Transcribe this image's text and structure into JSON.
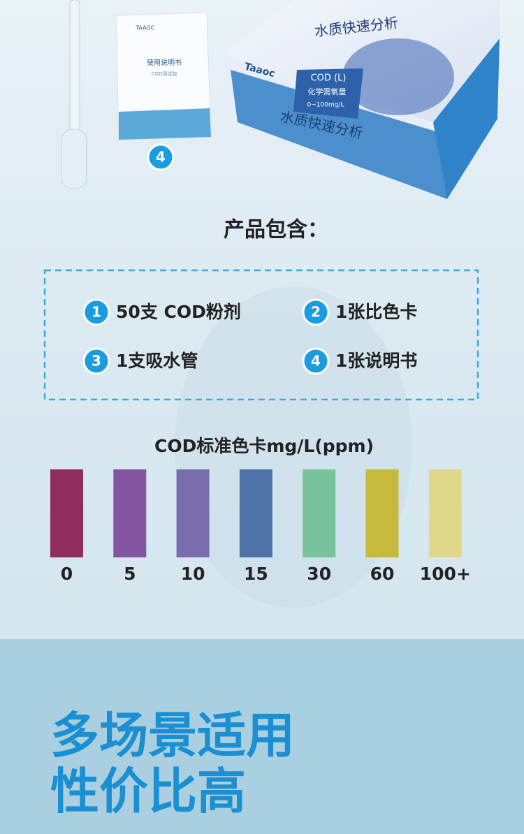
{
  "product_images": {
    "manual": {
      "brand": "TAAOC",
      "title": "使用说明书",
      "subtitle": "COD测试包",
      "badge": "4"
    },
    "box": {
      "brand": "Taaoc",
      "top_title": "水质快速分析",
      "label_title": "COD (L)",
      "label_sub": "化学需氧量",
      "label_range": "0~100mg/L",
      "front_title": "水质快速分析"
    }
  },
  "contents": {
    "title": "产品包含：",
    "items": [
      {
        "number": "1",
        "text": "50支  COD粉剂"
      },
      {
        "number": "2",
        "text": "1张比色卡"
      },
      {
        "number": "3",
        "text": "1支吸水管"
      },
      {
        "number": "4",
        "text": "1张说明书"
      }
    ]
  },
  "color_card": {
    "title": "COD标准色卡mg/L(ppm)",
    "swatches": [
      {
        "label": "0",
        "color": "#8e2d5e"
      },
      {
        "label": "5",
        "color": "#8455a1"
      },
      {
        "label": "10",
        "color": "#7a6dad"
      },
      {
        "label": "15",
        "color": "#4f73a9"
      },
      {
        "label": "30",
        "color": "#78c39b"
      },
      {
        "label": "60",
        "color": "#c6b93b"
      },
      {
        "label": "100+",
        "color": "#e0d78b"
      }
    ]
  },
  "slogan": {
    "line1": "多场景适用",
    "line2": "性价比高"
  }
}
